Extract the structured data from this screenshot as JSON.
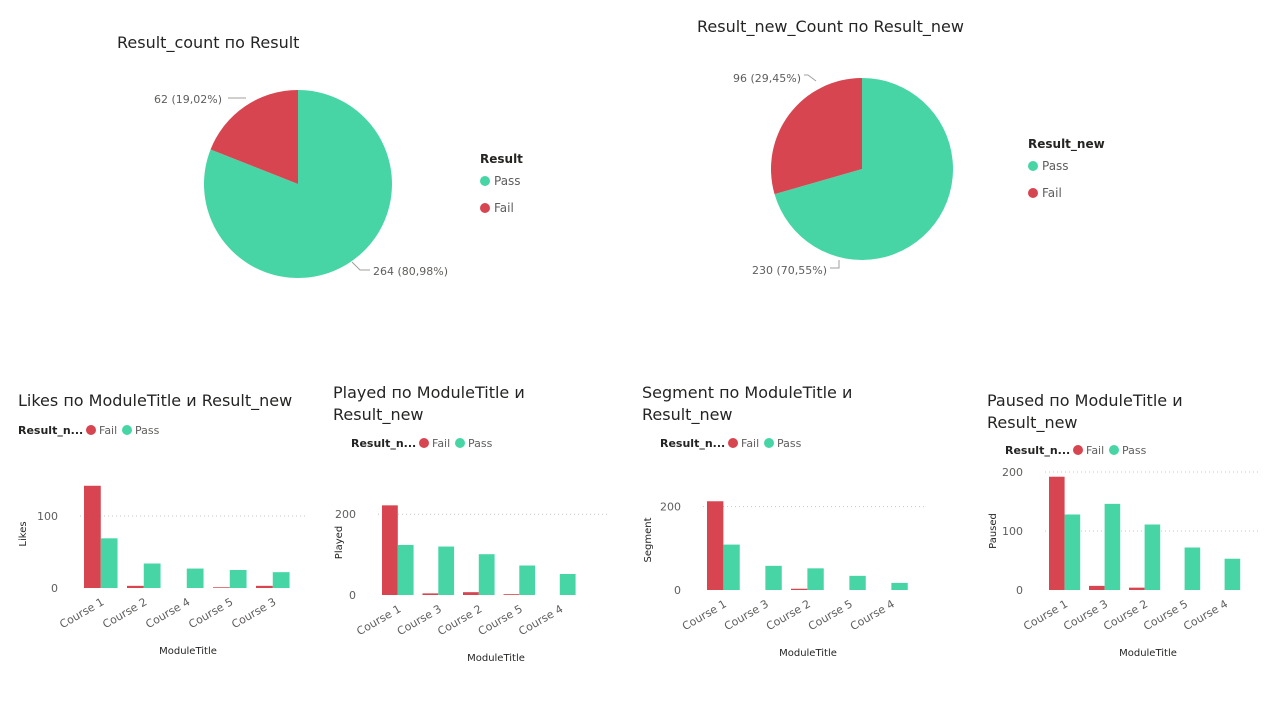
{
  "colors": {
    "Pass": "#47d5a6",
    "Fail": "#d64550"
  },
  "chart_data": [
    {
      "type": "pie",
      "title": "Result_count по Result",
      "legend_title": "Result",
      "legend_entries": [
        "Pass",
        "Fail"
      ],
      "categories": [
        "Pass",
        "Fail"
      ],
      "values": [
        264,
        62
      ],
      "data_labels": [
        "264 (80,98%)",
        "62 (19,02%)"
      ]
    },
    {
      "type": "pie",
      "title": "Result_new_Count по Result_new",
      "legend_title": "Result_new",
      "legend_entries": [
        "Pass",
        "Fail"
      ],
      "categories": [
        "Pass",
        "Fail"
      ],
      "values": [
        230,
        96
      ],
      "data_labels": [
        "230 (70,55%)",
        "96 (29,45%)"
      ]
    },
    {
      "type": "bar",
      "title": "Likes по ModuleTitle и Result_new",
      "legend_title": "Result_n...",
      "xlabel": "ModuleTitle",
      "ylabel": "Likes",
      "yticks": [
        0,
        100
      ],
      "ylim": [
        0,
        150
      ],
      "categories": [
        "Course 1",
        "Course 2",
        "Course 4",
        "Course 5",
        "Course 3"
      ],
      "series": [
        {
          "name": "Fail",
          "values": [
            142,
            3,
            0,
            1,
            3
          ]
        },
        {
          "name": "Pass",
          "values": [
            69,
            34,
            27,
            25,
            22
          ]
        }
      ]
    },
    {
      "type": "bar",
      "title": "Played по ModuleTitle и Result_new",
      "legend_title": "Result_n...",
      "xlabel": "ModuleTitle",
      "ylabel": "Played",
      "yticks": [
        0,
        200
      ],
      "ylim": [
        0,
        260
      ],
      "categories": [
        "Course 1",
        "Course 3",
        "Course 2",
        "Course 5",
        "Course 4"
      ],
      "series": [
        {
          "name": "Fail",
          "values": [
            222,
            4,
            7,
            2,
            0
          ]
        },
        {
          "name": "Pass",
          "values": [
            124,
            120,
            101,
            73,
            52
          ]
        }
      ]
    },
    {
      "type": "bar",
      "title": "Segment по ModuleTitle и Result_new",
      "legend_title": "Result_n...",
      "xlabel": "ModuleTitle",
      "ylabel": "Segment",
      "yticks": [
        0,
        200
      ],
      "ylim": [
        0,
        240
      ],
      "categories": [
        "Course 1",
        "Course 3",
        "Course 2",
        "Course 5",
        "Course 4"
      ],
      "series": [
        {
          "name": "Fail",
          "values": [
            213,
            0,
            3,
            0,
            0
          ]
        },
        {
          "name": "Pass",
          "values": [
            109,
            58,
            52,
            34,
            17
          ]
        }
      ]
    },
    {
      "type": "bar",
      "title": "Paused по ModuleTitle и Result_new",
      "legend_title": "Result_n...",
      "xlabel": "ModuleTitle",
      "ylabel": "Paused",
      "yticks": [
        0,
        100,
        200
      ],
      "ylim": [
        0,
        200
      ],
      "categories": [
        "Course 1",
        "Course 3",
        "Course 2",
        "Course 5",
        "Course 4"
      ],
      "series": [
        {
          "name": "Fail",
          "values": [
            192,
            7,
            4,
            0,
            0
          ]
        },
        {
          "name": "Pass",
          "values": [
            128,
            146,
            111,
            72,
            53
          ]
        }
      ]
    }
  ]
}
